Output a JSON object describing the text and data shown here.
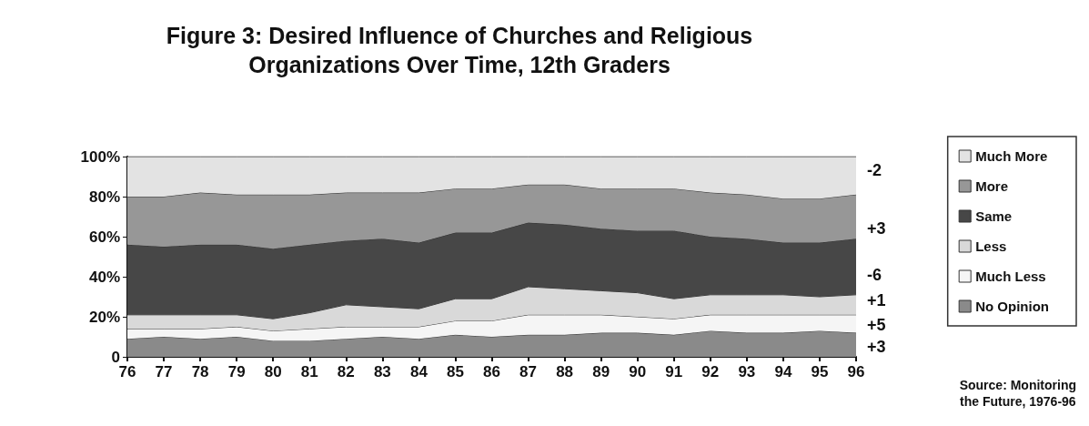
{
  "chart_data": {
    "type": "area",
    "stacked": true,
    "title": "Figure 3: Desired Influence of Churches and Religious\nOrganizations Over Time, 12th Graders",
    "categories": [
      "76",
      "77",
      "78",
      "79",
      "80",
      "81",
      "82",
      "83",
      "84",
      "85",
      "86",
      "87",
      "88",
      "89",
      "90",
      "91",
      "92",
      "93",
      "94",
      "95",
      "96"
    ],
    "series": [
      {
        "name": "No Opinion",
        "color": "#8a8a8a",
        "values": [
          9,
          10,
          9,
          10,
          8,
          8,
          9,
          10,
          9,
          11,
          10,
          11,
          11,
          12,
          12,
          11,
          13,
          12,
          12,
          13,
          12
        ]
      },
      {
        "name": "Much Less",
        "color": "#f5f5f5",
        "values": [
          5,
          4,
          5,
          5,
          5,
          6,
          6,
          5,
          6,
          7,
          8,
          10,
          10,
          9,
          8,
          8,
          8,
          9,
          9,
          8,
          9
        ]
      },
      {
        "name": "Less",
        "color": "#d9d9d9",
        "values": [
          7,
          7,
          7,
          6,
          6,
          8,
          11,
          10,
          9,
          11,
          11,
          14,
          13,
          12,
          12,
          10,
          10,
          10,
          10,
          9,
          10
        ]
      },
      {
        "name": "Same",
        "color": "#474747",
        "values": [
          35,
          34,
          35,
          35,
          35,
          34,
          32,
          34,
          33,
          33,
          33,
          32,
          32,
          31,
          31,
          34,
          29,
          28,
          26,
          27,
          28
        ]
      },
      {
        "name": "More",
        "color": "#979797",
        "values": [
          24,
          25,
          26,
          25,
          27,
          25,
          24,
          23,
          25,
          22,
          22,
          19,
          20,
          20,
          21,
          21,
          22,
          22,
          22,
          22,
          22
        ]
      },
      {
        "name": "Much More",
        "color": "#e3e3e3",
        "values": [
          20,
          20,
          18,
          19,
          19,
          19,
          18,
          18,
          18,
          16,
          16,
          14,
          14,
          16,
          16,
          16,
          18,
          19,
          21,
          21,
          19
        ]
      }
    ],
    "ylim": [
      0,
      100
    ],
    "yticks": [
      0,
      {
        "value": 20,
        "label": "20%"
      },
      {
        "value": 40,
        "label": "40%"
      },
      {
        "value": 60,
        "label": "60%"
      },
      {
        "value": 80,
        "label": "80%"
      },
      {
        "value": 100,
        "label": "100%"
      }
    ],
    "grid": false,
    "legend": "right",
    "marker": "none",
    "annotations": [
      {
        "text": "-2",
        "x": "96",
        "y": 93
      },
      {
        "text": "+3",
        "x": "96",
        "y": 64
      },
      {
        "text": "-6",
        "x": "96",
        "y": 41
      },
      {
        "text": "+1",
        "x": "96",
        "y": 28
      },
      {
        "text": "+5",
        "x": "96",
        "y": 16
      },
      {
        "text": "+3",
        "x": "96",
        "y": 5
      },
      "Source: Monitoring\nthe Future, 1976-96"
    ]
  }
}
